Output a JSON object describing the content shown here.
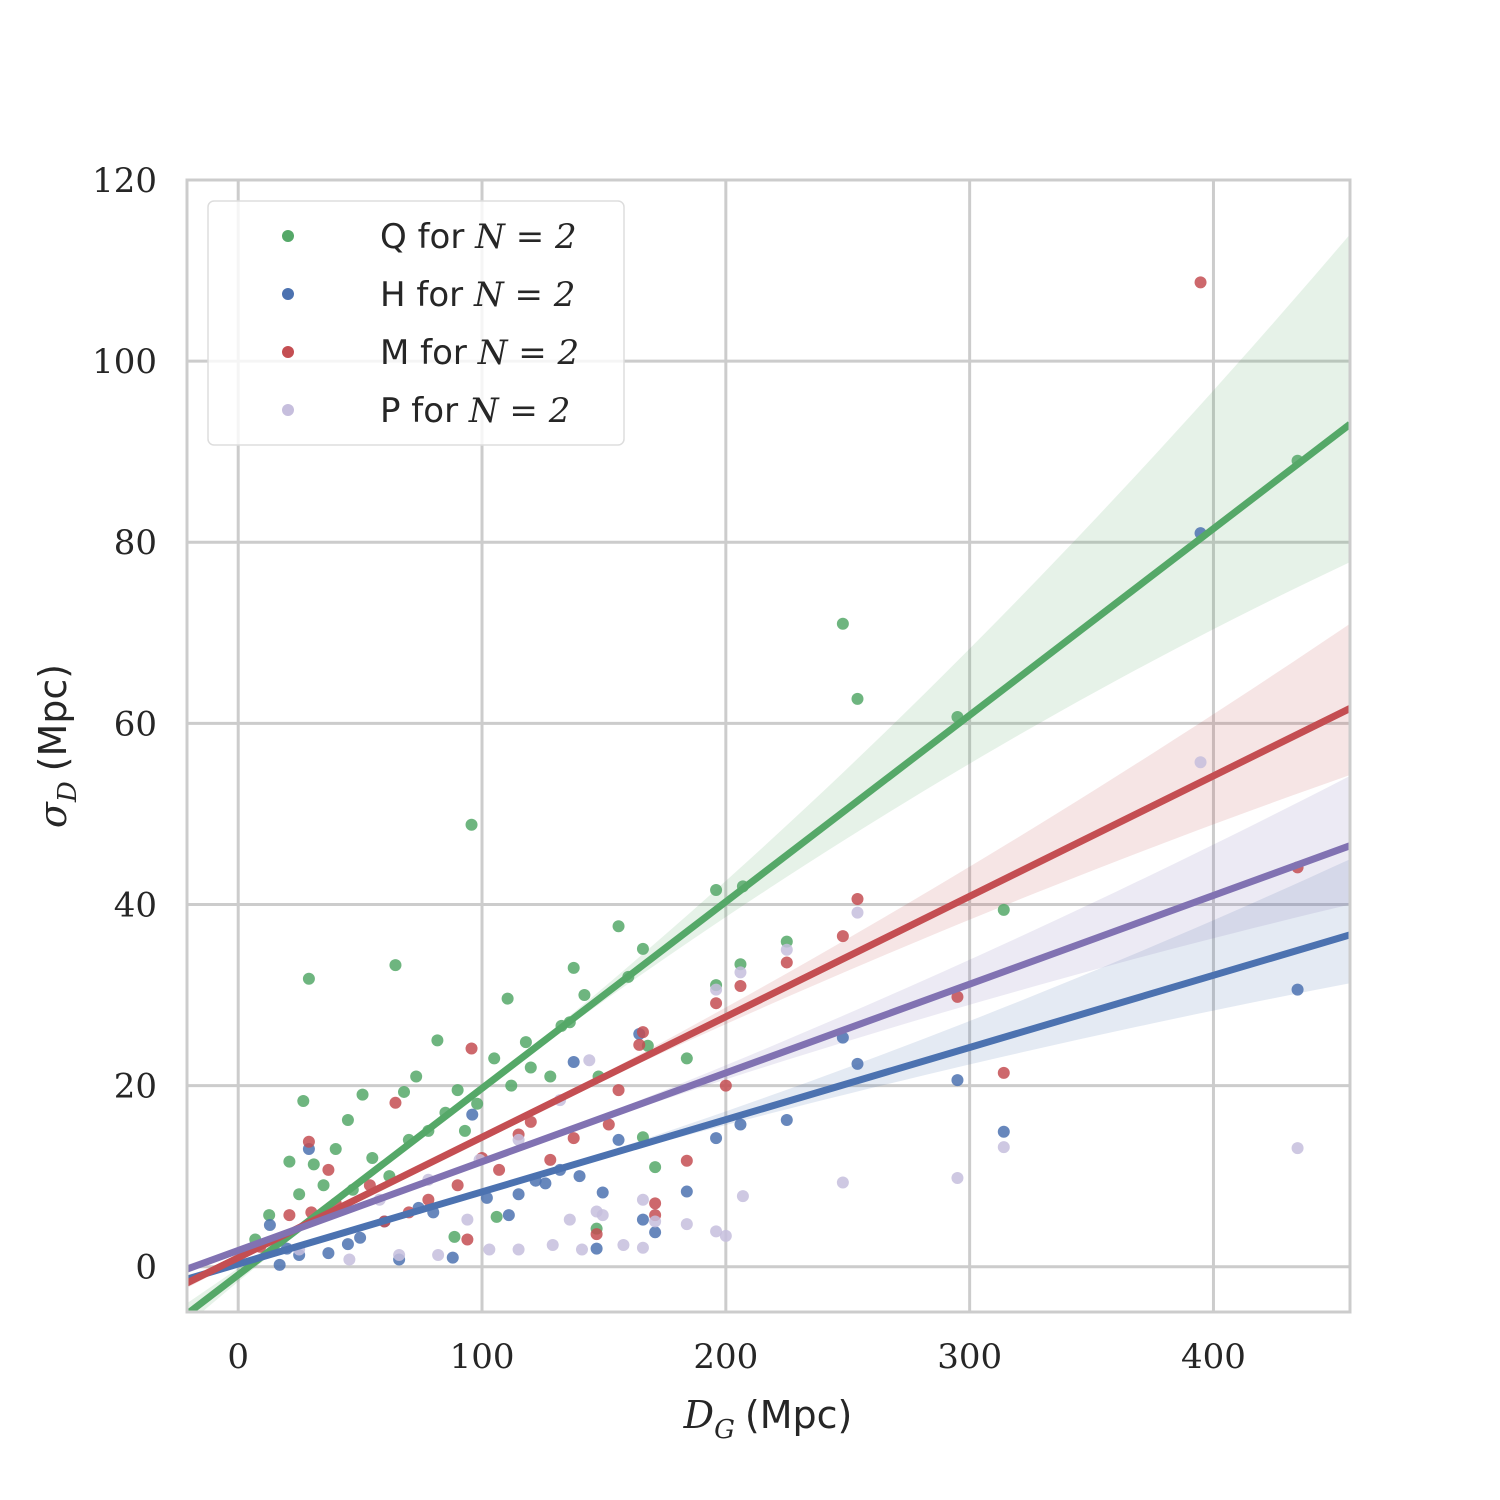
{
  "chart_data": {
    "type": "scatter",
    "title": "",
    "xlabel": {
      "var": "D",
      "sub": "G",
      "unit": "(Mpc)"
    },
    "ylabel": {
      "var": "σ",
      "sub": "D",
      "unit": "(Mpc)"
    },
    "xlim": [
      -21,
      456
    ],
    "ylim": [
      -5,
      120
    ],
    "xticks": [
      0,
      100,
      200,
      300,
      400
    ],
    "yticks": [
      0,
      20,
      40,
      60,
      80,
      100,
      120
    ],
    "grid": true,
    "legend_position": "top-left",
    "series": [
      {
        "name": "Q for N = 2",
        "label": "Q for",
        "eq": "N = 2",
        "color": "#55a868",
        "point_color": "#55a868",
        "fit": {
          "slope": 0.206,
          "intercept": -0.9,
          "ci_at_xmax": [
            77.8,
            114
          ]
        },
        "points": [
          [
            95.7,
            48.8
          ],
          [
            248,
            71
          ],
          [
            254,
            62.7
          ],
          [
            295,
            60.7
          ],
          [
            434.5,
            89
          ],
          [
            314,
            39.4
          ],
          [
            196,
            41.6
          ],
          [
            207,
            42
          ],
          [
            225,
            35.9
          ],
          [
            156,
            37.6
          ],
          [
            166,
            35.1
          ],
          [
            137.6,
            33
          ],
          [
            64.5,
            33.3
          ],
          [
            29,
            31.8
          ],
          [
            26.7,
            18.3
          ],
          [
            110.5,
            29.6
          ],
          [
            81.7,
            25
          ],
          [
            184,
            23
          ],
          [
            196,
            31.1
          ],
          [
            206,
            33.4
          ],
          [
            168,
            24.4
          ],
          [
            147.8,
            21
          ],
          [
            132.6,
            26.6
          ],
          [
            118,
            24.8
          ],
          [
            105,
            23
          ],
          [
            90,
            19.5
          ],
          [
            73,
            21
          ],
          [
            68,
            19.3
          ],
          [
            51,
            19
          ],
          [
            45,
            16.2
          ],
          [
            31,
            11.3
          ],
          [
            21,
            11.6
          ],
          [
            12.7,
            5.7
          ],
          [
            166,
            14.3
          ],
          [
            171,
            11
          ],
          [
            147,
            4.2
          ],
          [
            106,
            5.5
          ],
          [
            88.7,
            3.3
          ],
          [
            7,
            3
          ],
          [
            40,
            13
          ],
          [
            55,
            12
          ],
          [
            62,
            10
          ],
          [
            78,
            15
          ],
          [
            85,
            17
          ],
          [
            98,
            18
          ],
          [
            112,
            20
          ],
          [
            120,
            22
          ],
          [
            128,
            21
          ],
          [
            136,
            27
          ],
          [
            142,
            30
          ],
          [
            160,
            32
          ],
          [
            35,
            9
          ],
          [
            25,
            8
          ],
          [
            47,
            8.5
          ],
          [
            70,
            14
          ],
          [
            93,
            15
          ]
        ]
      },
      {
        "name": "H for N = 2",
        "label": "H for",
        "eq": "N = 2",
        "color": "#4c72b0",
        "point_color": "#4c72b0",
        "fit": {
          "slope": 0.0797,
          "intercept": 0.3,
          "ci_at_xmax": [
            31.3,
            45
          ]
        },
        "points": [
          [
            394.7,
            81
          ],
          [
            434.5,
            30.6
          ],
          [
            314,
            14.9
          ],
          [
            295,
            20.6
          ],
          [
            254,
            22.4
          ],
          [
            248,
            25.3
          ],
          [
            225,
            16.2
          ],
          [
            206,
            15.7
          ],
          [
            196,
            14.2
          ],
          [
            184,
            8.3
          ],
          [
            164.5,
            25.7
          ],
          [
            171,
            3.8
          ],
          [
            166,
            5.2
          ],
          [
            149.5,
            8.2
          ],
          [
            147,
            2
          ],
          [
            137.6,
            22.6
          ],
          [
            156,
            14
          ],
          [
            126,
            9.2
          ],
          [
            111,
            5.7
          ],
          [
            88,
            1
          ],
          [
            66,
            0.8
          ],
          [
            37,
            1.5
          ],
          [
            17,
            0.2
          ],
          [
            13,
            4.6
          ],
          [
            29,
            13
          ],
          [
            96,
            16.8
          ],
          [
            132,
            10.7
          ],
          [
            102,
            7.6
          ],
          [
            74,
            6.5
          ],
          [
            50,
            3.2
          ],
          [
            25,
            1.3
          ],
          [
            60,
            5
          ],
          [
            80,
            6
          ],
          [
            115,
            8
          ],
          [
            140,
            10
          ],
          [
            45,
            2.5
          ],
          [
            20,
            2
          ],
          [
            122,
            9.5
          ]
        ]
      },
      {
        "name": "M for N = 2",
        "label": "M for",
        "eq": "N = 2",
        "color": "#c44e52",
        "point_color": "#c44e52",
        "fit": {
          "slope": 0.133,
          "intercept": 1.0,
          "ci_at_xmax": [
            54.3,
            71
          ]
        },
        "points": [
          [
            394.7,
            108.7
          ],
          [
            434.5,
            44.1
          ],
          [
            314,
            21.4
          ],
          [
            295,
            29.8
          ],
          [
            254,
            40.6
          ],
          [
            248,
            36.5
          ],
          [
            225,
            33.6
          ],
          [
            206,
            31
          ],
          [
            200,
            20
          ],
          [
            196,
            29.1
          ],
          [
            184,
            11.7
          ],
          [
            166,
            25.9
          ],
          [
            164.5,
            24.5
          ],
          [
            156,
            19.5
          ],
          [
            171,
            7
          ],
          [
            171,
            5.7
          ],
          [
            95.7,
            24.1
          ],
          [
            64.5,
            18.1
          ],
          [
            29,
            13.8
          ],
          [
            147,
            3.6
          ],
          [
            137.6,
            14.2
          ],
          [
            115,
            14.6
          ],
          [
            90,
            9
          ],
          [
            94,
            3
          ],
          [
            78,
            7.4
          ],
          [
            54,
            9
          ],
          [
            37,
            10.7
          ],
          [
            21,
            5.7
          ],
          [
            9,
            2.2
          ],
          [
            107,
            10.7
          ],
          [
            128,
            11.8
          ],
          [
            152,
            15.7
          ],
          [
            60,
            5
          ],
          [
            70,
            6
          ],
          [
            120,
            16
          ],
          [
            100,
            12
          ],
          [
            40,
            7
          ],
          [
            30,
            6
          ]
        ]
      },
      {
        "name": "P for N = 2",
        "label": "P for",
        "eq": "N = 2",
        "color": "#8172b2",
        "point_color": "#c6bedd",
        "fit": {
          "slope": 0.098,
          "intercept": 1.8,
          "ci_at_xmax": [
            40,
            54.2
          ]
        },
        "points": [
          [
            394.7,
            55.7
          ],
          [
            434.5,
            13.1
          ],
          [
            314,
            13.2
          ],
          [
            295,
            9.8
          ],
          [
            254,
            39.1
          ],
          [
            248,
            9.3
          ],
          [
            225,
            35
          ],
          [
            207,
            7.8
          ],
          [
            206,
            32.5
          ],
          [
            200,
            3.4
          ],
          [
            196,
            3.9
          ],
          [
            196,
            30.6
          ],
          [
            184,
            4.7
          ],
          [
            171,
            5
          ],
          [
            166,
            2.1
          ],
          [
            166,
            7.4
          ],
          [
            158,
            2.4
          ],
          [
            149.5,
            5.7
          ],
          [
            147,
            6.1
          ],
          [
            141,
            1.9
          ],
          [
            136,
            5.2
          ],
          [
            129,
            2.4
          ],
          [
            115,
            1.9
          ],
          [
            103,
            1.9
          ],
          [
            94,
            5.2
          ],
          [
            82,
            1.3
          ],
          [
            66,
            1.3
          ],
          [
            45.6,
            0.8
          ],
          [
            25,
            1.9
          ],
          [
            115,
            14
          ],
          [
            99,
            11.8
          ],
          [
            78,
            9.6
          ],
          [
            58,
            7.4
          ],
          [
            132,
            18.4
          ],
          [
            144,
            22.8
          ]
        ]
      }
    ]
  }
}
